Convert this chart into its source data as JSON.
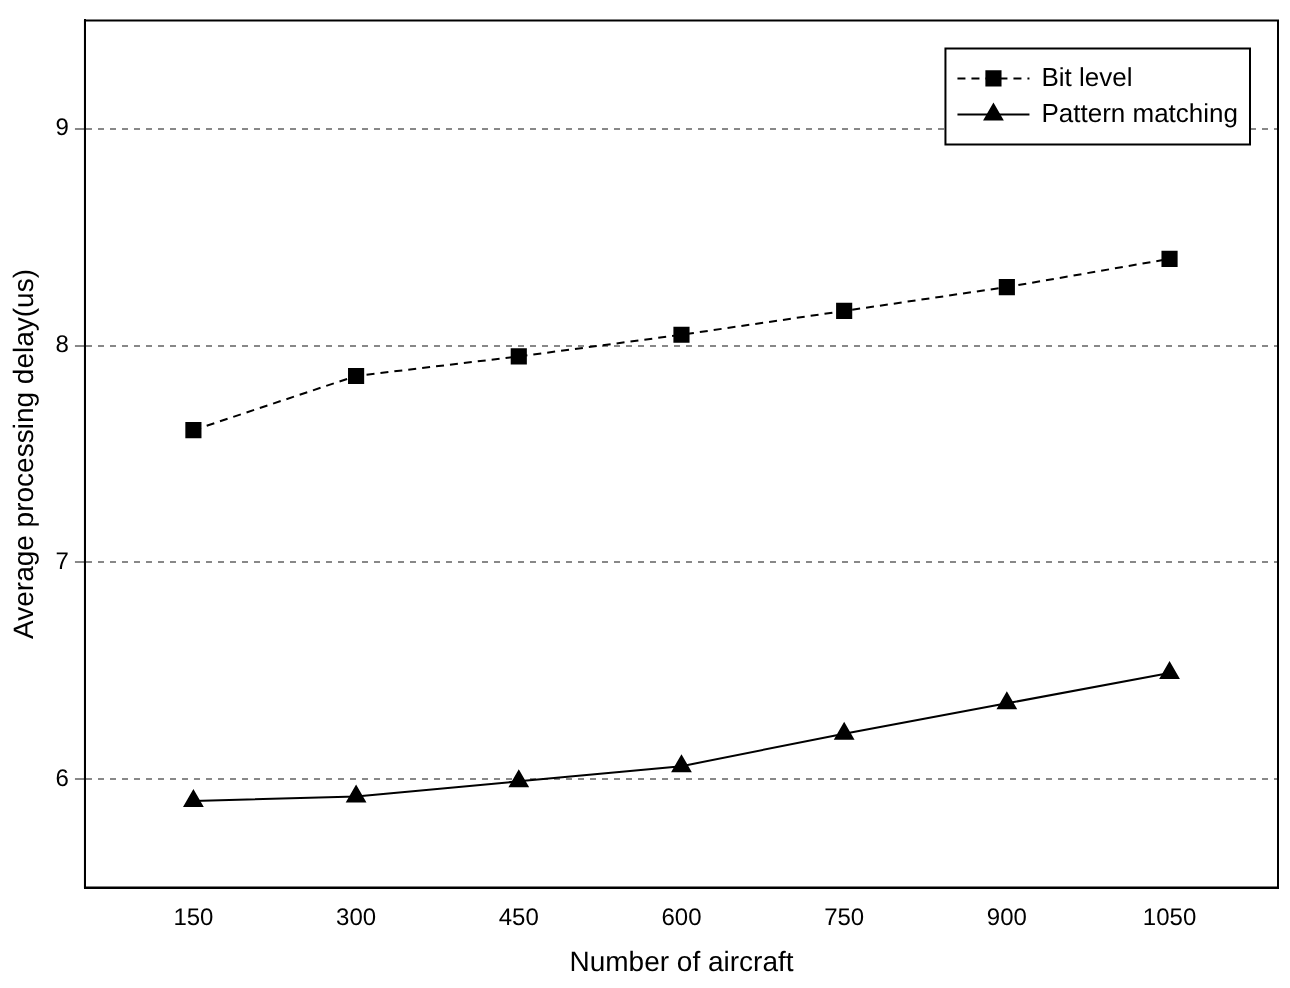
{
  "chart_data": {
    "type": "line",
    "xlabel": "Number of aircraft",
    "ylabel": "Average processing delay(us)",
    "x": [
      150,
      300,
      450,
      600,
      750,
      900,
      1050
    ],
    "xlim": [
      50,
      1150
    ],
    "xticks": [
      150,
      300,
      450,
      600,
      750,
      900,
      1050
    ],
    "ylim": [
      5.5,
      9.5
    ],
    "yticks": [
      6,
      7,
      8,
      9
    ],
    "grid": "y",
    "legend": "top right",
    "series": [
      {
        "name": "Bit level",
        "color": "#000000",
        "marker": "square",
        "line_style": "dashed",
        "values": [
          7.61,
          7.86,
          7.95,
          8.05,
          8.16,
          8.27,
          8.4
        ]
      },
      {
        "name": "Pattern matching",
        "color": "#000000",
        "marker": "triangle",
        "line_style": "solid",
        "values": [
          5.9,
          5.92,
          5.99,
          6.06,
          6.21,
          6.35,
          6.49
        ]
      }
    ]
  }
}
